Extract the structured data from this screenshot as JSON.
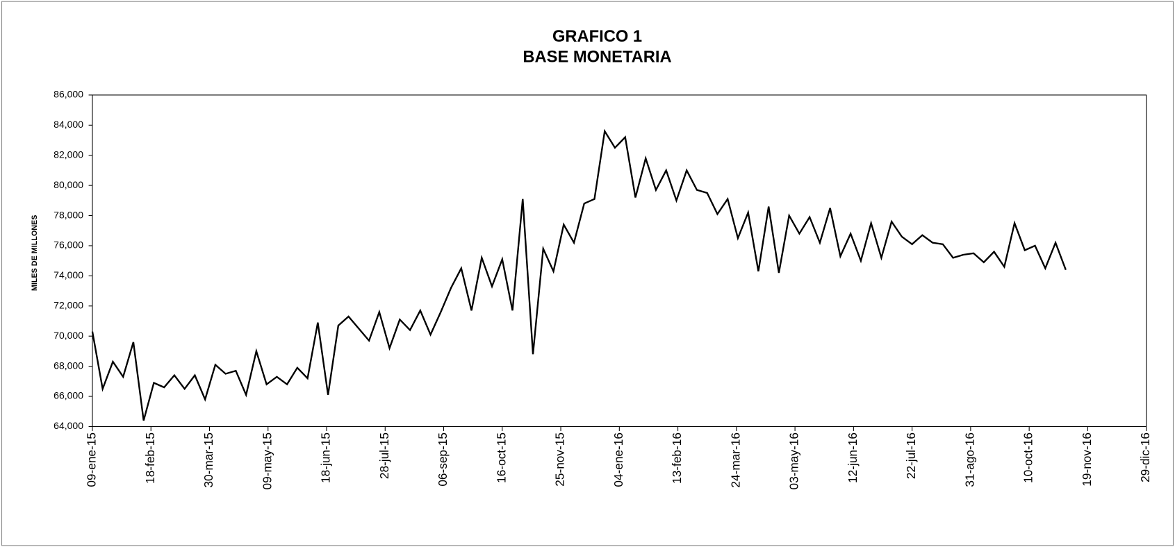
{
  "chart_data": {
    "type": "line",
    "title": "GRAFICO 1",
    "subtitle": "BASE MONETARIA",
    "y_label": "MILES DE MILLONES",
    "x": [
      "2015-01-09",
      "2015-01-16",
      "2015-01-23",
      "2015-01-30",
      "2015-02-06",
      "2015-02-13",
      "2015-02-20",
      "2015-02-27",
      "2015-03-06",
      "2015-03-13",
      "2015-03-20",
      "2015-03-27",
      "2015-04-03",
      "2015-04-10",
      "2015-04-17",
      "2015-04-24",
      "2015-05-01",
      "2015-05-08",
      "2015-05-15",
      "2015-05-22",
      "2015-05-29",
      "2015-06-05",
      "2015-06-12",
      "2015-06-19",
      "2015-06-26",
      "2015-07-03",
      "2015-07-10",
      "2015-07-17",
      "2015-07-24",
      "2015-07-31",
      "2015-08-07",
      "2015-08-14",
      "2015-08-21",
      "2015-08-28",
      "2015-09-04",
      "2015-09-11",
      "2015-09-18",
      "2015-09-25",
      "2015-10-02",
      "2015-10-09",
      "2015-10-16",
      "2015-10-23",
      "2015-10-30",
      "2015-11-06",
      "2015-11-13",
      "2015-11-20",
      "2015-11-27",
      "2015-12-04",
      "2015-12-11",
      "2015-12-18",
      "2015-12-25",
      "2016-01-01",
      "2016-01-08",
      "2016-01-15",
      "2016-01-22",
      "2016-01-29",
      "2016-02-05",
      "2016-02-12",
      "2016-02-19",
      "2016-02-26",
      "2016-03-04",
      "2016-03-11",
      "2016-03-18",
      "2016-03-25",
      "2016-04-01",
      "2016-04-08",
      "2016-04-15",
      "2016-04-22",
      "2016-04-29",
      "2016-05-06",
      "2016-05-13",
      "2016-05-20",
      "2016-05-27",
      "2016-06-03",
      "2016-06-10",
      "2016-06-17",
      "2016-06-24",
      "2016-07-01",
      "2016-07-08",
      "2016-07-15",
      "2016-07-22",
      "2016-07-29",
      "2016-08-05",
      "2016-08-12",
      "2016-08-19",
      "2016-08-26",
      "2016-09-02",
      "2016-09-09",
      "2016-09-16",
      "2016-09-23",
      "2016-09-30",
      "2016-10-07",
      "2016-10-14",
      "2016-10-21",
      "2016-10-28",
      "2016-11-04"
    ],
    "series": [
      {
        "color": "#000000",
        "values": [
          70300,
          66500,
          68300,
          67300,
          69600,
          64400,
          66900,
          66600,
          67400,
          66500,
          67400,
          65800,
          68100,
          67500,
          67700,
          66100,
          69000,
          66800,
          67300,
          66800,
          67900,
          67200,
          70900,
          66100,
          70700,
          71300,
          70500,
          69700,
          71600,
          69200,
          71100,
          70400,
          71700,
          70100,
          71600,
          73200,
          74500,
          71700,
          75200,
          73300,
          75100,
          71700,
          79100,
          68800,
          75800,
          74300,
          77400,
          76200,
          78800,
          79100,
          83600,
          82500,
          83200,
          79200,
          81800,
          79700,
          81000,
          79000,
          81000,
          79700,
          79500,
          78100,
          79100,
          76500,
          78200,
          74300,
          78600,
          74200,
          78000,
          76800,
          77900,
          76200,
          78500,
          75300,
          76800,
          75000,
          77500,
          75200,
          77600,
          76600,
          76100,
          76700,
          76200,
          76100,
          75200,
          75400,
          75500,
          74900,
          75600,
          74600,
          77500,
          75700,
          76000,
          74500,
          76200,
          74400
        ]
      }
    ],
    "xlim": [
      "2015-01-09",
      "2016-12-29"
    ],
    "xticks": [
      {
        "value": "2015-01-09",
        "label": "09-ene-15"
      },
      {
        "value": "2015-02-18",
        "label": "18-feb-15"
      },
      {
        "value": "2015-03-30",
        "label": "30-mar-15"
      },
      {
        "value": "2015-05-09",
        "label": "09-may-15"
      },
      {
        "value": "2015-06-18",
        "label": "18-jun-15"
      },
      {
        "value": "2015-07-28",
        "label": "28-jul-15"
      },
      {
        "value": "2015-09-06",
        "label": "06-sep-15"
      },
      {
        "value": "2015-10-16",
        "label": "16-oct-15"
      },
      {
        "value": "2015-11-25",
        "label": "25-nov-15"
      },
      {
        "value": "2016-01-04",
        "label": "04-ene-16"
      },
      {
        "value": "2016-02-13",
        "label": "13-feb-16"
      },
      {
        "value": "2016-03-24",
        "label": "24-mar-16"
      },
      {
        "value": "2016-05-03",
        "label": "03-may-16"
      },
      {
        "value": "2016-06-12",
        "label": "12-jun-16"
      },
      {
        "value": "2016-07-22",
        "label": "22-jul-16"
      },
      {
        "value": "2016-08-31",
        "label": "31-ago-16"
      },
      {
        "value": "2016-10-10",
        "label": "10-oct-16"
      },
      {
        "value": "2016-11-19",
        "label": "19-nov-16"
      },
      {
        "value": "2016-12-29",
        "label": "29-dic-16"
      }
    ],
    "ylim": [
      64000,
      86000
    ],
    "yticks": [
      {
        "value": 64000,
        "label": "64,000"
      },
      {
        "value": 66000,
        "label": "66,000"
      },
      {
        "value": 68000,
        "label": "68,000"
      },
      {
        "value": 70000,
        "label": "70,000"
      },
      {
        "value": 72000,
        "label": "72,000"
      },
      {
        "value": 74000,
        "label": "74,000"
      },
      {
        "value": 76000,
        "label": "76,000"
      },
      {
        "value": 78000,
        "label": "78,000"
      },
      {
        "value": 80000,
        "label": "80,000"
      },
      {
        "value": 82000,
        "label": "82,000"
      },
      {
        "value": 84000,
        "label": "84,000"
      },
      {
        "value": 86000,
        "label": "86,000"
      }
    ],
    "grid": false
  }
}
